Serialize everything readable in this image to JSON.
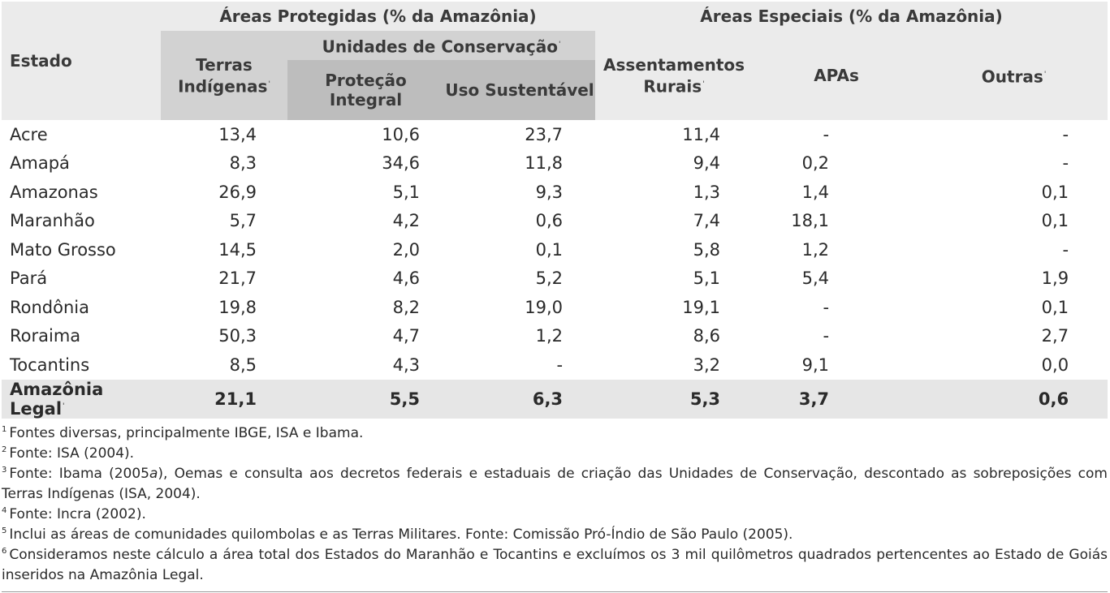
{
  "header": {
    "estado": "Estado",
    "protegidas": "Áreas Protegidas (% da Amazônia)",
    "especiais": "Áreas Especiais (% da Amazônia)",
    "unidades_conservacao": "Unidades de Conservação",
    "terras_indigenas": "Terras Indígenas",
    "protecao_integral": "Proteção Integral",
    "uso_sustentavel": "Uso Sustentável",
    "assentamentos_rurais": "Assentamentos Rurais",
    "apas": "APAs",
    "outras": "Outras",
    "fn_mark": "'"
  },
  "rows": [
    {
      "estado": "Acre",
      "ti": "13,4",
      "pi": "10,6",
      "us": "23,7",
      "ar": "11,4",
      "apa": "-",
      "out": "-"
    },
    {
      "estado": "Amapá",
      "ti": "8,3",
      "pi": "34,6",
      "us": "11,8",
      "ar": "9,4",
      "apa": "0,2",
      "out": "-"
    },
    {
      "estado": "Amazonas",
      "ti": "26,9",
      "pi": "5,1",
      "us": "9,3",
      "ar": "1,3",
      "apa": "1,4",
      "out": "0,1"
    },
    {
      "estado": "Maranhão",
      "ti": "5,7",
      "pi": "4,2",
      "us": "0,6",
      "ar": "7,4",
      "apa": "18,1",
      "out": "0,1"
    },
    {
      "estado": "Mato Grosso",
      "ti": "14,5",
      "pi": "2,0",
      "us": "0,1",
      "ar": "5,8",
      "apa": "1,2",
      "out": "-"
    },
    {
      "estado": "Pará",
      "ti": "21,7",
      "pi": "4,6",
      "us": "5,2",
      "ar": "5,1",
      "apa": "5,4",
      "out": "1,9"
    },
    {
      "estado": "Rondônia",
      "ti": "19,8",
      "pi": "8,2",
      "us": "19,0",
      "ar": "19,1",
      "apa": "-",
      "out": "0,1"
    },
    {
      "estado": "Roraima",
      "ti": "50,3",
      "pi": "4,7",
      "us": "1,2",
      "ar": "8,6",
      "apa": "-",
      "out": "2,7"
    },
    {
      "estado": "Tocantins",
      "ti": "8,5",
      "pi": "4,3",
      "us": "-",
      "ar": "3,2",
      "apa": "9,1",
      "out": "0,0"
    }
  ],
  "total": {
    "estado": "Amazônia Legal",
    "ti": "21,1",
    "pi": "5,5",
    "us": "6,3",
    "ar": "5,3",
    "apa": "3,7",
    "out": "0,6"
  },
  "footnotes": [
    {
      "num": "1",
      "text": "Fontes diversas, principalmente IBGE, ISA e Ibama."
    },
    {
      "num": "2",
      "text": "Fonte: ISA (2004)."
    },
    {
      "num": "3",
      "text_a": "Fonte: Ibama (2005",
      "italic": "a",
      "text_b": "), Oemas e consulta aos decretos federais e estaduais de criação das Unidades de Conservação, descontado as sobreposições com Terras Indígenas (ISA, 2004)."
    },
    {
      "num": "4",
      "text": "Fonte: Incra (2002)."
    },
    {
      "num": "5",
      "text": "Inclui as áreas de comunidades quilombolas e as Terras Militares. Fonte: Comissão Pró-Índio de São Paulo (2005)."
    },
    {
      "num": "6",
      "text": "Consideramos neste cálculo a área total dos Estados do Maranhão e Tocantins e excluímos os 3 mil quilômetros quadrados pertencentes ao Estado de Goiás inseridos na Amazônia Legal."
    }
  ]
}
